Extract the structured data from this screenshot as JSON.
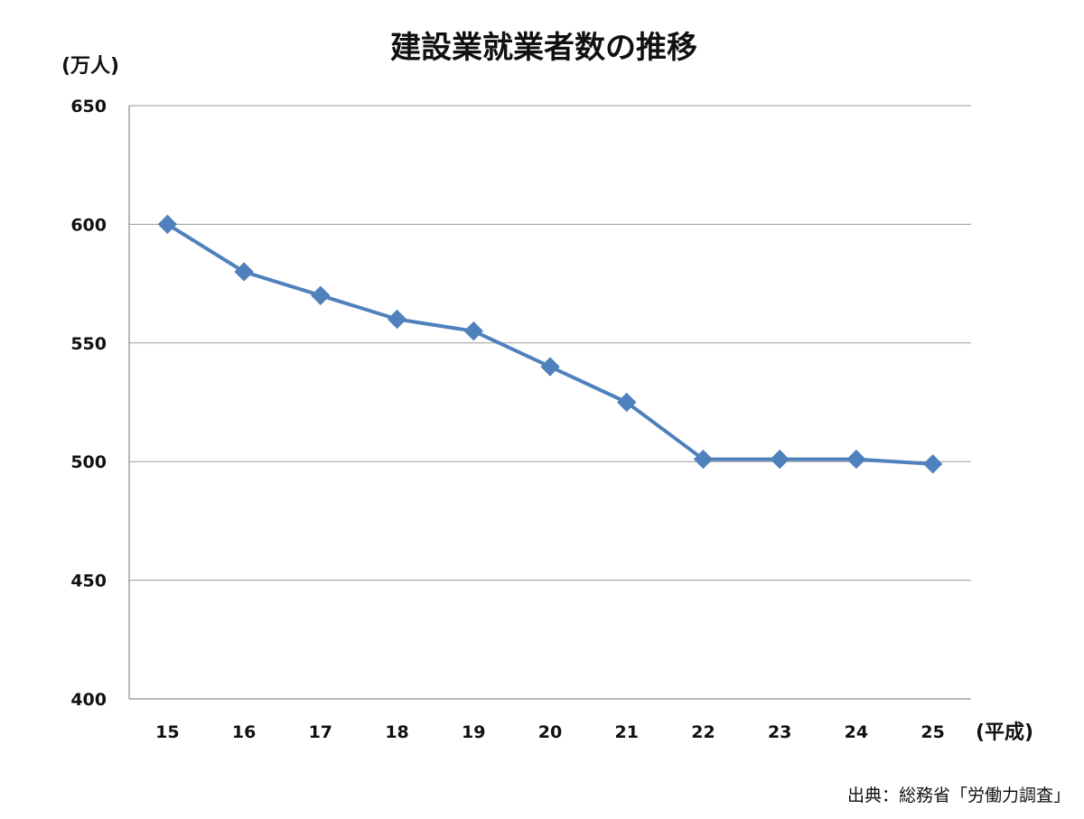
{
  "chart_data": {
    "type": "line",
    "title": "建設業就業者数の推移",
    "ylabel": "(万人)",
    "xlabel": "(平成)",
    "source": "出典：総務省「労働力調査」",
    "categories": [
      "15",
      "16",
      "17",
      "18",
      "19",
      "20",
      "21",
      "22",
      "23",
      "24",
      "25"
    ],
    "series": [
      {
        "name": "",
        "values": [
          600,
          580,
          570,
          560,
          555,
          540,
          525,
          501,
          501,
          501,
          499
        ],
        "color": "#4f81bd",
        "marker": "diamond"
      }
    ],
    "ylim": [
      400,
      650
    ],
    "yticks": [
      "400",
      "450",
      "500",
      "550",
      "600",
      "650"
    ],
    "grid": true,
    "legend": "none"
  }
}
